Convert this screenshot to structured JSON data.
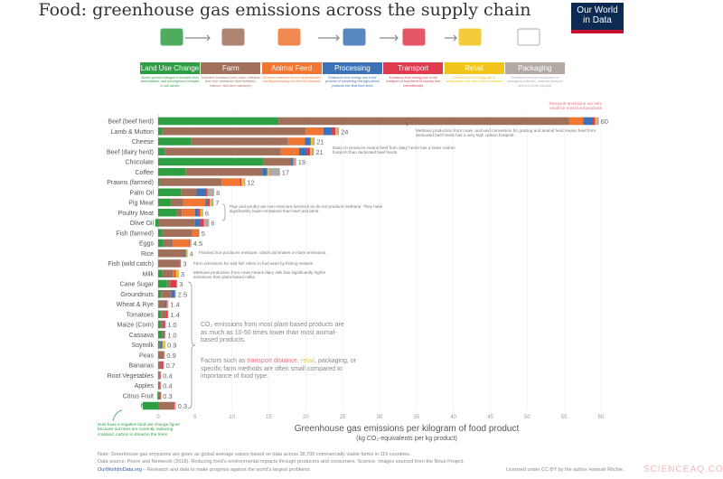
{
  "title": "Food: greenhouse gas emissions across the supply chain",
  "logo": {
    "line1": "Our World",
    "line2": "in Data"
  },
  "stages": [
    {
      "label": "Land Use Change",
      "color": "#2e9e42",
      "icon": "tree-icon",
      "desc": "Above-ground changes in biomass from deforestation, and belowground changes in soil carbon"
    },
    {
      "label": "Farm",
      "color": "#a0705a",
      "icon": "farm-animals-tractor-icon",
      "desc": "Methane emissions from cows, methane from rice, emissions from fertilizers, manure, and farm machinery"
    },
    {
      "label": "Animal Feed",
      "color": "#ef7633",
      "icon": "farmer-feed-icon",
      "desc": "On-farm emissions from crop production and its processing into feed for livestock"
    },
    {
      "label": "Processing",
      "color": "#3d73b4",
      "icon": "factory-icon",
      "desc": "Emissions from energy use in the process of converting raw agricultural products into final food items"
    },
    {
      "label": "Transport",
      "color": "#e03a4e",
      "icon": "truck-plane-icon",
      "desc": "Emissions from energy use in the transport of food items in country and internationally"
    },
    {
      "label": "Retail",
      "color": "#f0c419",
      "icon": "shop-icon",
      "desc": "Emissions from energy use in refrigeration and other retail processes"
    },
    {
      "label": "Packaging",
      "color": "#b3a9a4",
      "icon": "packaging-icon",
      "desc": "Emissions from the production of packaging materials, material transport and end of life disposal"
    }
  ],
  "annotations": {
    "transport_small": "Transport emissions are very small for most food products",
    "beef": "Methane production from cows, and land conversion for grazing and animal feed means beef from dedicated beef herds has a very high carbon footprint.",
    "dairy_beef": "Dairy co-products means beef from dairy herds has a lower carbon footprint than dedicated beef herds.",
    "pig_poultry": "Pigs and poultry are non-ruminant livestock so do not produce methane. They have significantly lower emissions than beef and lamb.",
    "rice": "Flooded rice produces methane, which dominates on-farm emissions.",
    "fish": "Farm emissions for wild fish refers to fuel used by fishing vessels.",
    "milk": "Methane production from cows means dairy milk has significantly higher emissions than plant-based milks.",
    "plants1": "CO₂ emissions from most plant-based products are as much as 10-50 times lower than most animal-based products.",
    "plants2_a": "Factors such as ",
    "plants2_transport": "transport distance",
    "plants2_sep": ", ",
    "plants2_retail": "retail",
    "plants2_b": ", packaging, or specific farm methods are often small compared to importance of food type.",
    "nuts": "Nuts have a negative land use change figure because nut trees are currently replacing cropland; carbon is stored in the trees."
  },
  "footer": {
    "note": "Note: Greenhouse gas emissions are given as global average values based on data across 38,700 commercially viable farms in 119 countries.",
    "source": "Data source: Poore and Nemecek (2018). Reducing food's environmental impacts through producers and consumers. Science. Images sourced from the Noun Project.",
    "site": "OurWorldinData.org",
    "tagline": " – Research and data to make progress against the world's largest problems.",
    "license": "Licensed under CC-BY by the author Hannah Ritchie."
  },
  "watermark": "SCIENCEAQ.COM",
  "chart_data": {
    "type": "bar",
    "orientation": "horizontal-stacked",
    "xlabel": "Greenhouse gas emissions per kilogram of food product",
    "xlabel_sub": "(kg CO₂-equivalents per kg product)",
    "xlim": [
      -5,
      60
    ],
    "xticks": [
      0,
      5,
      10,
      15,
      20,
      25,
      30,
      35,
      40,
      45,
      50,
      55,
      60
    ],
    "grid": true,
    "series_names": [
      "Land Use Change",
      "Farm",
      "Animal Feed",
      "Processing",
      "Transport",
      "Retail",
      "Packaging"
    ],
    "categories": [
      "Beef (beef herd)",
      "Lamb & Mutton",
      "Cheese",
      "Beef (dairy herd)",
      "Chocolate",
      "Coffee",
      "Prawns (farmed)",
      "Palm Oil",
      "Pig Meat",
      "Poultry Meat",
      "Olive Oil",
      "Fish (farmed)",
      "Eggs",
      "Rice",
      "Fish (wild catch)",
      "Milk",
      "Cane Sugar",
      "Groundnuts",
      "Wheat & Rye",
      "Tomatoes",
      "Maize (Corn)",
      "Cassava",
      "Soymilk",
      "Peas",
      "Bananas",
      "Root Vegetables",
      "Apples",
      "Citrus Fruit",
      "Nuts"
    ],
    "total_labels": [
      "60",
      "24",
      "21",
      "21",
      "19",
      "17",
      "12",
      "8",
      "7",
      "6",
      "6",
      "5",
      "4.5",
      "4",
      "3",
      "3",
      "3",
      "2.5",
      "1.4",
      "1.4",
      "1.0",
      "1.0",
      "0.9",
      "0.9",
      "0.7",
      "0.4",
      "0.4",
      "0.3",
      "0.3"
    ],
    "values": [
      [
        16.3,
        39.4,
        1.9,
        1.3,
        0.3,
        0.2,
        0.3
      ],
      [
        0.5,
        19.5,
        2.4,
        1.1,
        0.5,
        0.2,
        0.3
      ],
      [
        4.5,
        13.1,
        2.3,
        0.7,
        0.1,
        0.3,
        0.2
      ],
      [
        0.9,
        15.7,
        2.5,
        1.1,
        0.4,
        0.2,
        0.3
      ],
      [
        14.3,
        3.7,
        0,
        0.2,
        0.1,
        0,
        0.4
      ],
      [
        3.7,
        10.4,
        0,
        0.6,
        0.1,
        0.1,
        1.6
      ],
      [
        0.2,
        8.4,
        2.5,
        0,
        0.2,
        0.3,
        0.2
      ],
      [
        3.1,
        2.1,
        0,
        1.3,
        0.2,
        0,
        0.9
      ],
      [
        1.7,
        1.7,
        3.0,
        0.3,
        0.3,
        0.2,
        0.3
      ],
      [
        2.5,
        0.7,
        1.8,
        0.4,
        0.3,
        0.2,
        0.2
      ],
      [
        -0.4,
        5.0,
        0,
        0.7,
        0.5,
        0,
        0.7
      ],
      [
        0.6,
        4.0,
        0.8,
        0,
        0.1,
        0,
        0.1
      ],
      [
        0.7,
        1.3,
        2.2,
        0,
        0.1,
        0,
        0.2
      ],
      [
        0,
        3.6,
        0,
        0.1,
        0.1,
        0.1,
        0.1
      ],
      [
        0,
        2.9,
        0,
        0,
        0.1,
        0,
        0.1
      ],
      [
        0.5,
        1.5,
        0.2,
        0.1,
        0.1,
        0.3,
        0.1
      ],
      [
        1.2,
        0.5,
        0,
        0,
        0.8,
        0,
        0.1
      ],
      [
        0.4,
        1.4,
        0,
        0.4,
        0.1,
        0,
        0.1
      ],
      [
        0.1,
        0.8,
        0,
        0.2,
        0.1,
        0.1,
        0.1
      ],
      [
        0.4,
        0.7,
        0,
        0,
        0.2,
        0,
        0.1
      ],
      [
        0.3,
        0.5,
        0,
        0.1,
        0.1,
        0,
        0
      ],
      [
        0.6,
        0.2,
        0,
        0,
        0.1,
        0,
        0.1
      ],
      [
        0.2,
        0.1,
        0,
        0.2,
        0.1,
        0.3,
        0.1
      ],
      [
        0,
        0.7,
        0,
        0,
        0.1,
        0,
        0.1
      ],
      [
        0,
        0.3,
        0,
        0.1,
        0.3,
        0,
        0.1
      ],
      [
        0,
        0.2,
        0,
        0,
        0.1,
        0,
        0.1
      ],
      [
        0,
        0.2,
        0,
        0,
        0.1,
        0,
        0.1
      ],
      [
        -0.1,
        0.3,
        0,
        0,
        0.1,
        0,
        0
      ],
      [
        -2.1,
        2.1,
        0,
        0,
        0.1,
        0,
        0.2
      ]
    ]
  }
}
